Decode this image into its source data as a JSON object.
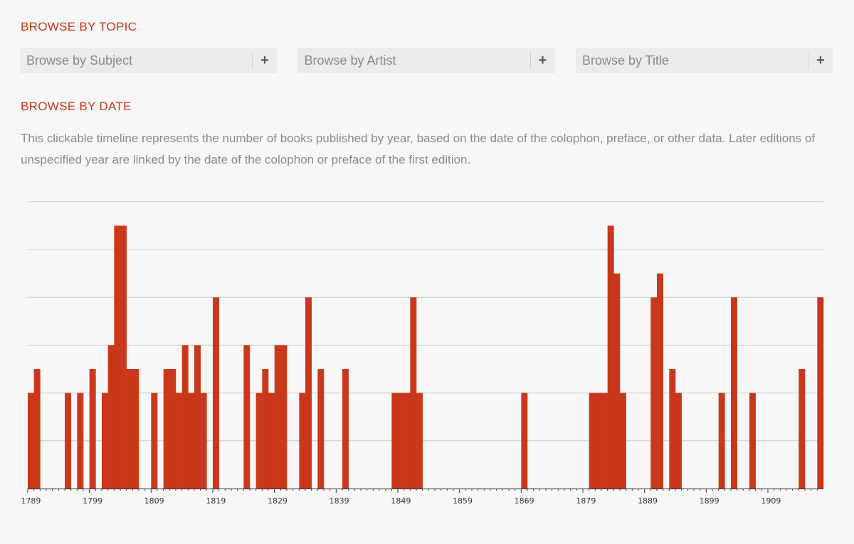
{
  "topic_section": {
    "heading": "BROWSE BY TOPIC",
    "boxes": [
      {
        "label": "Browse by Subject",
        "icon": "plus-icon",
        "icon_glyph": "+"
      },
      {
        "label": "Browse by Artist",
        "icon": "plus-icon",
        "icon_glyph": "+"
      },
      {
        "label": "Browse by Title",
        "icon": "plus-icon",
        "icon_glyph": "+"
      }
    ]
  },
  "date_section": {
    "heading": "BROWSE BY DATE",
    "description": "This clickable timeline represents the number of books published by year, based on the date of the colophon, preface, or other data. Later editions of unspecified year are linked by the date of the colophon or preface of the first edition."
  },
  "colors": {
    "accent": "#c9381a",
    "background": "#f7f7f7",
    "box_background": "#ebebeb",
    "gridline": "#cccccc"
  },
  "chart_data": {
    "type": "bar",
    "title": "",
    "xlabel": "",
    "ylabel": "",
    "x_range": [
      1789,
      1917
    ],
    "ylim": [
      0,
      6
    ],
    "grid": true,
    "x_ticks": [
      1789,
      1799,
      1809,
      1819,
      1829,
      1839,
      1849,
      1859,
      1869,
      1879,
      1889,
      1899,
      1909
    ],
    "series": [
      {
        "points": [
          [
            1789,
            2
          ],
          [
            1790,
            2.5
          ],
          [
            1795,
            2
          ],
          [
            1797,
            2
          ],
          [
            1799,
            2.5
          ],
          [
            1801,
            2
          ],
          [
            1802,
            3
          ],
          [
            1803,
            5.5
          ],
          [
            1804,
            5.5
          ],
          [
            1805,
            2.5
          ],
          [
            1806,
            2.5
          ],
          [
            1809,
            2
          ],
          [
            1811,
            2.5
          ],
          [
            1812,
            2.5
          ],
          [
            1813,
            2
          ],
          [
            1814,
            3
          ],
          [
            1815,
            2
          ],
          [
            1816,
            3
          ],
          [
            1817,
            2
          ],
          [
            1819,
            4
          ],
          [
            1824,
            3
          ],
          [
            1826,
            2
          ],
          [
            1827,
            2.5
          ],
          [
            1828,
            2
          ],
          [
            1829,
            3
          ],
          [
            1830,
            3
          ],
          [
            1833,
            2
          ],
          [
            1834,
            4
          ],
          [
            1836,
            2.5
          ],
          [
            1840,
            2.5
          ],
          [
            1848,
            2
          ],
          [
            1849,
            2
          ],
          [
            1850,
            2
          ],
          [
            1851,
            4
          ],
          [
            1852,
            2
          ],
          [
            1869,
            2
          ],
          [
            1880,
            2
          ],
          [
            1881,
            2
          ],
          [
            1882,
            2
          ],
          [
            1883,
            5.5
          ],
          [
            1884,
            4.5
          ],
          [
            1885,
            2
          ],
          [
            1890,
            4
          ],
          [
            1891,
            4.5
          ],
          [
            1893,
            2.5
          ],
          [
            1894,
            2
          ],
          [
            1901,
            2
          ],
          [
            1903,
            4
          ],
          [
            1906,
            2
          ],
          [
            1914,
            2.5
          ],
          [
            1917,
            4
          ]
        ]
      }
    ]
  }
}
